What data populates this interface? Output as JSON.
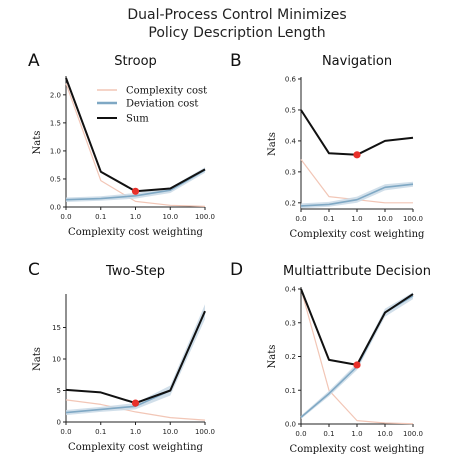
{
  "figure": {
    "title_line1": "Dual-Process Control Minimizes",
    "title_line2": "Policy Description Length"
  },
  "colors": {
    "complexity": "#f2c6b6",
    "deviation": "#7fa8c4",
    "deviation_band": "#c9d9e6",
    "sum": "#111111",
    "optimum": "#e8302a"
  },
  "legend": {
    "placement": "upper-center of panel A",
    "items": [
      {
        "label": "Complexity cost",
        "series": "complexity"
      },
      {
        "label": "Deviation cost",
        "series": "deviation"
      },
      {
        "label": "Sum",
        "series": "sum"
      }
    ]
  },
  "chart_data": [
    {
      "type": "line",
      "letter": "A",
      "title": "Stroop",
      "xlabel": "Complexity cost weighting",
      "ylabel": "Nats",
      "x": [
        "0.0",
        "0.1",
        "1.0",
        "10.0",
        "100.0"
      ],
      "xticks": [
        "0.0",
        "0.1",
        "1.0",
        "10.0",
        "100.0"
      ],
      "ylim": [
        0,
        2.3
      ],
      "yticks": [
        "0.0",
        "0.5",
        "1.0",
        "1.5",
        "2.0"
      ],
      "series": [
        {
          "name": "Complexity cost",
          "key": "complexity",
          "values": [
            2.2,
            0.47,
            0.1,
            0.03,
            0.01
          ]
        },
        {
          "name": "Deviation cost",
          "key": "deviation",
          "values": [
            0.13,
            0.15,
            0.2,
            0.3,
            0.66
          ],
          "band": [
            0.04,
            0.04,
            0.05,
            0.05,
            0.05
          ]
        },
        {
          "name": "Sum",
          "key": "sum",
          "values": [
            2.3,
            0.63,
            0.28,
            0.33,
            0.67
          ]
        }
      ],
      "optimum": {
        "x": "1.0",
        "y": 0.28
      }
    },
    {
      "type": "line",
      "letter": "B",
      "title": "Navigation",
      "xlabel": "Complexity cost weighting",
      "ylabel": "Nats",
      "x": [
        "0.0",
        "0.1",
        "1.0",
        "10.0",
        "100.0"
      ],
      "xticks": [
        "0.0",
        "0.1",
        "1.0",
        "10.0",
        "100.0"
      ],
      "ylim": [
        0.18,
        0.6
      ],
      "yticks": [
        "0.2",
        "0.3",
        "0.4",
        "0.5",
        "0.6"
      ],
      "series": [
        {
          "name": "Complexity cost",
          "key": "complexity",
          "values": [
            0.34,
            0.22,
            0.21,
            0.2,
            0.2
          ]
        },
        {
          "name": "Deviation cost",
          "key": "deviation",
          "values": [
            0.19,
            0.195,
            0.21,
            0.25,
            0.26
          ],
          "band": [
            0.008,
            0.008,
            0.01,
            0.01,
            0.008
          ]
        },
        {
          "name": "Sum",
          "key": "sum",
          "values": [
            0.5,
            0.36,
            0.355,
            0.4,
            0.41
          ]
        }
      ],
      "optimum": {
        "x": "1.0",
        "y": 0.355
      }
    },
    {
      "type": "line",
      "letter": "C",
      "title": "Two-Step",
      "xlabel": "Complexity cost weighting",
      "ylabel": "Nats",
      "x": [
        "0.0",
        "0.1",
        "1.0",
        "10.0",
        "100.0"
      ],
      "xticks": [
        "0.0",
        "0.1",
        "1.0",
        "10.0",
        "100.0"
      ],
      "ylim": [
        0,
        20
      ],
      "yticks": [
        "0",
        "5",
        "10",
        "15"
      ],
      "series": [
        {
          "name": "Complexity cost",
          "key": "complexity",
          "values": [
            3.5,
            2.8,
            1.6,
            0.7,
            0.3
          ]
        },
        {
          "name": "Deviation cost",
          "key": "deviation",
          "values": [
            1.5,
            2.0,
            2.5,
            5.0,
            17.5
          ],
          "band": [
            0.4,
            0.4,
            0.5,
            0.8,
            1.2
          ]
        },
        {
          "name": "Sum",
          "key": "sum",
          "values": [
            5.1,
            4.7,
            3.0,
            5.0,
            17.6
          ]
        }
      ],
      "optimum": {
        "x": "1.0",
        "y": 3.0
      }
    },
    {
      "type": "line",
      "letter": "D",
      "title": "Multiattribute Decision",
      "xlabel": "Complexity cost weighting",
      "ylabel": "Nats",
      "x": [
        "0.0",
        "0.1",
        "1.0",
        "10.0",
        "100.0"
      ],
      "xticks": [
        "0.0",
        "0.1",
        "1.0",
        "10.0",
        "100.0"
      ],
      "ylim": [
        0,
        0.4
      ],
      "yticks": [
        "0.0",
        "0.1",
        "0.2",
        "0.3",
        "0.4"
      ],
      "series": [
        {
          "name": "Complexity cost",
          "key": "complexity",
          "values": [
            0.4,
            0.1,
            0.01,
            0.003,
            0.001
          ]
        },
        {
          "name": "Deviation cost",
          "key": "deviation",
          "values": [
            0.02,
            0.09,
            0.17,
            0.33,
            0.38
          ],
          "band": [
            0.005,
            0.008,
            0.01,
            0.012,
            0.01
          ]
        },
        {
          "name": "Sum",
          "key": "sum",
          "values": [
            0.4,
            0.19,
            0.175,
            0.33,
            0.385
          ]
        }
      ],
      "optimum": {
        "x": "1.0",
        "y": 0.175
      }
    }
  ]
}
